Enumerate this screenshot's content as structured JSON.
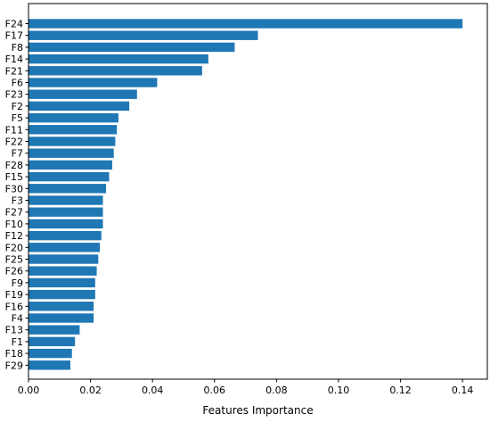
{
  "chart_data": {
    "type": "bar",
    "orientation": "horizontal",
    "xlabel": "Features Importance",
    "ylabel": "",
    "title": "",
    "xlim": [
      0.0,
      0.148
    ],
    "xticks": [
      "0.00",
      "0.02",
      "0.04",
      "0.06",
      "0.08",
      "0.10",
      "0.12",
      "0.14"
    ],
    "grid": false,
    "bar_color": "#1f77b4",
    "categories": [
      "F24",
      "F17",
      "F8",
      "F14",
      "F21",
      "F6",
      "F23",
      "F2",
      "F5",
      "F11",
      "F22",
      "F7",
      "F28",
      "F15",
      "F30",
      "F3",
      "F27",
      "F10",
      "F12",
      "F20",
      "F25",
      "F26",
      "F9",
      "F19",
      "F16",
      "F4",
      "F13",
      "F1",
      "F18",
      "F29"
    ],
    "values": [
      0.14,
      0.074,
      0.0665,
      0.058,
      0.056,
      0.0415,
      0.035,
      0.0325,
      0.029,
      0.0285,
      0.028,
      0.0275,
      0.027,
      0.026,
      0.025,
      0.024,
      0.024,
      0.024,
      0.0235,
      0.023,
      0.0225,
      0.022,
      0.0215,
      0.0215,
      0.021,
      0.021,
      0.0165,
      0.015,
      0.014,
      0.0135
    ]
  }
}
